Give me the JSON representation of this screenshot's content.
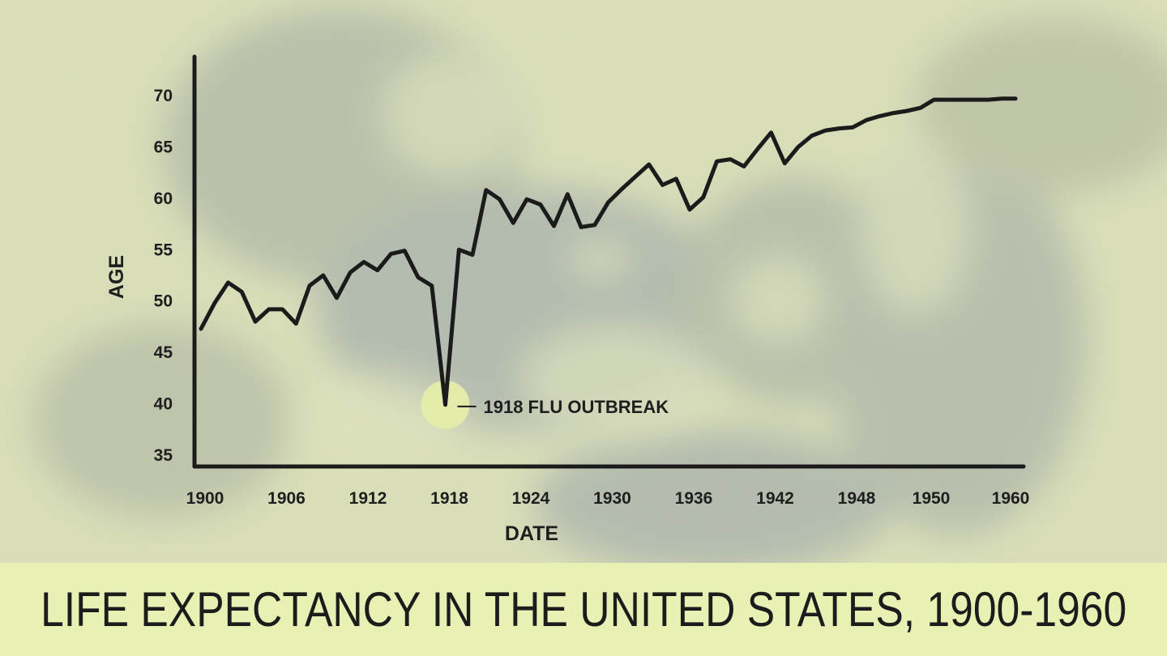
{
  "chart_data": {
    "type": "line",
    "title": "LIFE EXPECTANCY IN THE UNITED STATES, 1900-1960",
    "xlabel": "DATE",
    "ylabel": "AGE",
    "xlim": [
      1900,
      1961
    ],
    "ylim": [
      33.5,
      72
    ],
    "x_ticks": [
      {
        "value": 1900,
        "label": "1900"
      },
      {
        "value": 1906,
        "label": "1906"
      },
      {
        "value": 1912,
        "label": "1912"
      },
      {
        "value": 1918,
        "label": "1918"
      },
      {
        "value": 1924,
        "label": "1924"
      },
      {
        "value": 1930,
        "label": "1930"
      },
      {
        "value": 1936,
        "label": "1936"
      },
      {
        "value": 1942,
        "label": "1942"
      },
      {
        "value": 1948,
        "label": "1948"
      },
      {
        "value": 1950,
        "label": "1950"
      },
      {
        "value": 1960,
        "label": "1960"
      }
    ],
    "y_ticks": [
      35,
      40,
      45,
      50,
      55,
      60,
      65,
      70
    ],
    "grid": false,
    "series": [
      {
        "name": "Life expectancy",
        "color": "#1b1b1b",
        "x": [
          1900,
          1901,
          1902,
          1903,
          1904,
          1905,
          1906,
          1907,
          1908,
          1909,
          1910,
          1911,
          1912,
          1913,
          1914,
          1915,
          1916,
          1917,
          1918,
          1919,
          1920,
          1921,
          1922,
          1923,
          1924,
          1925,
          1926,
          1927,
          1928,
          1929,
          1930,
          1931,
          1932,
          1933,
          1934,
          1935,
          1936,
          1937,
          1938,
          1939,
          1940,
          1941,
          1942,
          1943,
          1944,
          1945,
          1946,
          1947,
          1948,
          1949,
          1950,
          1951,
          1952,
          1953,
          1954,
          1955,
          1956,
          1957,
          1958,
          1959,
          1960
        ],
        "values": [
          47.3,
          49.8,
          51.8,
          50.9,
          48.0,
          49.2,
          49.2,
          47.8,
          51.5,
          52.5,
          50.3,
          52.8,
          53.8,
          53.0,
          54.6,
          54.9,
          52.3,
          51.5,
          39.9,
          55.0,
          54.5,
          60.8,
          59.9,
          57.6,
          59.9,
          59.4,
          57.3,
          60.4,
          57.2,
          57.4,
          59.6,
          60.9,
          62.1,
          63.3,
          61.3,
          61.9,
          58.9,
          60.1,
          63.6,
          63.8,
          63.1,
          64.8,
          66.4,
          63.4,
          65.0,
          66.1,
          66.6,
          66.8,
          66.9,
          67.6,
          68.0,
          68.3,
          68.5,
          68.8,
          69.6,
          69.6,
          69.6,
          69.6,
          69.6,
          69.7,
          69.7
        ]
      }
    ],
    "annotations": [
      {
        "x": 1918,
        "y": 39.9,
        "text": "1918 FLU OUTBREAK",
        "color": "#e6ecaa"
      }
    ]
  }
}
